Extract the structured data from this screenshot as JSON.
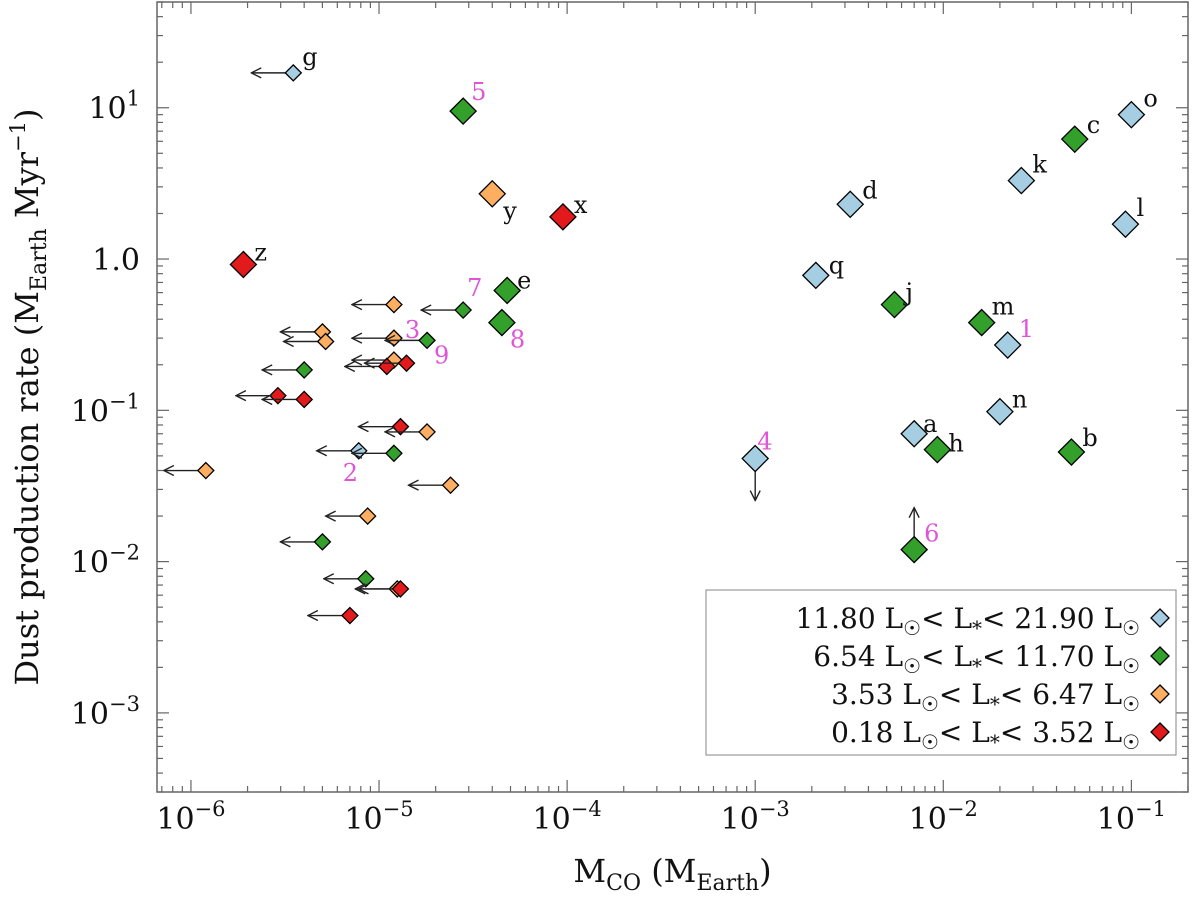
{
  "chart_data": {
    "type": "scatter",
    "title": "",
    "xlabel": {
      "main": "M",
      "sub": "CO",
      "rest_open": " (M",
      "rest_sub": "Earth",
      "rest_close": ")"
    },
    "ylabel": {
      "main": "Dust production rate (M",
      "sub": "Earth",
      "mid": " Myr",
      "sup": "−1",
      "close": ")"
    },
    "xscale": "log",
    "yscale": "log",
    "xlim": [
      6.6e-07,
      0.2
    ],
    "ylim": [
      0.0003,
      50
    ],
    "xticks": [
      {
        "value": 1e-06,
        "base": "10",
        "exp": "−6"
      },
      {
        "value": 1e-05,
        "base": "10",
        "exp": "−5"
      },
      {
        "value": 0.0001,
        "base": "10",
        "exp": "−4"
      },
      {
        "value": 0.001,
        "base": "10",
        "exp": "−3"
      },
      {
        "value": 0.01,
        "base": "10",
        "exp": "−2"
      },
      {
        "value": 0.1,
        "base": "10",
        "exp": "−1"
      }
    ],
    "yticks": [
      {
        "value": 10,
        "base": "10",
        "exp": "1"
      },
      {
        "value": 1,
        "base": "1.0",
        "exp": ""
      },
      {
        "value": 0.1,
        "base": "10",
        "exp": "−1"
      },
      {
        "value": 0.01,
        "base": "10",
        "exp": "−2"
      },
      {
        "value": 0.001,
        "base": "10",
        "exp": "−3"
      }
    ],
    "series": [
      {
        "name": "11.80 L☉ < L* < 21.90 L☉",
        "legend": {
          "a": "11.80 L",
          "b": "< L",
          "c": "< 21.90 L"
        },
        "color": "#a6cee3"
      },
      {
        "name": "6.54 L☉ < L* < 11.70 L☉",
        "legend": {
          "a": "6.54 L",
          "b": "< L",
          "c": "< 11.70 L"
        },
        "color": "#33a02c"
      },
      {
        "name": "3.53 L☉ < L* < 6.47 L☉",
        "legend": {
          "a": "3.53 L",
          "b": "< L",
          "c": "< 6.47 L"
        },
        "color": "#fdae61"
      },
      {
        "name": "0.18 L☉ < L* < 3.52 L☉",
        "legend": {
          "a": "0.18 L",
          "b": "< L",
          "c": "< 3.52 L"
        },
        "color": "#e31a1c"
      }
    ],
    "legend_location": "lower-right",
    "label_color_default": "#111111",
    "label_color_numbered": "#e055d8",
    "points": [
      {
        "x": 3.5e-06,
        "y": 17,
        "s": 0,
        "big": false,
        "ul": "x",
        "label": "g"
      },
      {
        "x": 2.8e-05,
        "y": 9.5,
        "s": 1,
        "big": true,
        "label": "5"
      },
      {
        "x": 4e-05,
        "y": 2.7,
        "s": 2,
        "big": true,
        "label": "y"
      },
      {
        "x": 9.5e-05,
        "y": 1.9,
        "s": 3,
        "big": true,
        "label": "x"
      },
      {
        "x": 1.9e-06,
        "y": 0.92,
        "s": 3,
        "big": true,
        "label": "z"
      },
      {
        "x": 4.8e-05,
        "y": 0.62,
        "s": 1,
        "big": true,
        "label": "e"
      },
      {
        "x": 4.5e-05,
        "y": 0.38,
        "s": 1,
        "big": true,
        "label": "8"
      },
      {
        "x": 2.8e-05,
        "y": 0.46,
        "s": 1,
        "big": false,
        "ul": "x",
        "label": "7"
      },
      {
        "x": 1.2e-05,
        "y": 0.5,
        "s": 2,
        "big": false,
        "ul": "x"
      },
      {
        "x": 1.2e-05,
        "y": 0.3,
        "s": 2,
        "big": false,
        "ul": "x",
        "label": "3"
      },
      {
        "x": 5e-06,
        "y": 0.33,
        "s": 2,
        "big": false,
        "ul": "x"
      },
      {
        "x": 5.2e-06,
        "y": 0.285,
        "s": 2,
        "big": false,
        "ul": "x"
      },
      {
        "x": 1.8e-05,
        "y": 0.29,
        "s": 1,
        "big": false,
        "ul": "x",
        "label": "9"
      },
      {
        "x": 1.2e-05,
        "y": 0.215,
        "s": 2,
        "big": false,
        "ul": "x"
      },
      {
        "x": 1.1e-05,
        "y": 0.195,
        "s": 3,
        "big": false,
        "ul": "x"
      },
      {
        "x": 1.4e-05,
        "y": 0.205,
        "s": 3,
        "big": false,
        "ul": "x"
      },
      {
        "x": 4e-06,
        "y": 0.185,
        "s": 1,
        "big": false,
        "ul": "x"
      },
      {
        "x": 2.9e-06,
        "y": 0.125,
        "s": 3,
        "big": false,
        "ul": "x"
      },
      {
        "x": 4e-06,
        "y": 0.118,
        "s": 3,
        "big": false,
        "ul": "x"
      },
      {
        "x": 1.3e-05,
        "y": 0.078,
        "s": 3,
        "big": false,
        "ul": "x"
      },
      {
        "x": 1.8e-05,
        "y": 0.072,
        "s": 2,
        "big": false,
        "ul": "x"
      },
      {
        "x": 7.8e-06,
        "y": 0.054,
        "s": 0,
        "big": false,
        "ul": "x",
        "label": "2"
      },
      {
        "x": 1.2e-05,
        "y": 0.052,
        "s": 1,
        "big": false,
        "ul": "x"
      },
      {
        "x": 1.2e-06,
        "y": 0.04,
        "s": 2,
        "big": false,
        "ul": "x"
      },
      {
        "x": 2.4e-05,
        "y": 0.032,
        "s": 2,
        "big": false,
        "ul": "x"
      },
      {
        "x": 8.7e-06,
        "y": 0.02,
        "s": 2,
        "big": false,
        "ul": "x"
      },
      {
        "x": 5e-06,
        "y": 0.0135,
        "s": 1,
        "big": false,
        "ul": "x"
      },
      {
        "x": 8.5e-06,
        "y": 0.0077,
        "s": 1,
        "big": false,
        "ul": "x"
      },
      {
        "x": 1.25e-05,
        "y": 0.0066,
        "s": 2,
        "big": false,
        "ul": "x"
      },
      {
        "x": 1.3e-05,
        "y": 0.0066,
        "s": 3,
        "big": false,
        "ul": "x"
      },
      {
        "x": 7e-06,
        "y": 0.0044,
        "s": 3,
        "big": false,
        "ul": "x"
      },
      {
        "x": 0.0021,
        "y": 0.78,
        "s": 0,
        "big": true,
        "label": "q"
      },
      {
        "x": 0.0032,
        "y": 2.3,
        "s": 0,
        "big": true,
        "label": "d"
      },
      {
        "x": 0.001,
        "y": 0.048,
        "s": 0,
        "big": true,
        "ul": "y",
        "label": "4"
      },
      {
        "x": 0.0055,
        "y": 0.5,
        "s": 1,
        "big": true,
        "label": "j"
      },
      {
        "x": 0.007,
        "y": 0.07,
        "s": 0,
        "big": true,
        "label": "a"
      },
      {
        "x": 0.0093,
        "y": 0.055,
        "s": 1,
        "big": true,
        "label": "h"
      },
      {
        "x": 0.007,
        "y": 0.012,
        "s": 1,
        "big": true,
        "ll": "y",
        "label": "6"
      },
      {
        "x": 0.016,
        "y": 0.38,
        "s": 1,
        "big": true,
        "label": "m"
      },
      {
        "x": 0.022,
        "y": 0.27,
        "s": 0,
        "big": true,
        "label": "1"
      },
      {
        "x": 0.02,
        "y": 0.098,
        "s": 0,
        "big": true,
        "label": "n"
      },
      {
        "x": 0.026,
        "y": 3.3,
        "s": 0,
        "big": true,
        "label": "k"
      },
      {
        "x": 0.05,
        "y": 6.2,
        "s": 1,
        "big": true,
        "label": "c"
      },
      {
        "x": 0.048,
        "y": 0.053,
        "s": 1,
        "big": true,
        "label": "b"
      },
      {
        "x": 0.1,
        "y": 9.0,
        "s": 0,
        "big": true,
        "label": "o"
      },
      {
        "x": 0.093,
        "y": 1.7,
        "s": 0,
        "big": true,
        "label": "l"
      }
    ]
  }
}
